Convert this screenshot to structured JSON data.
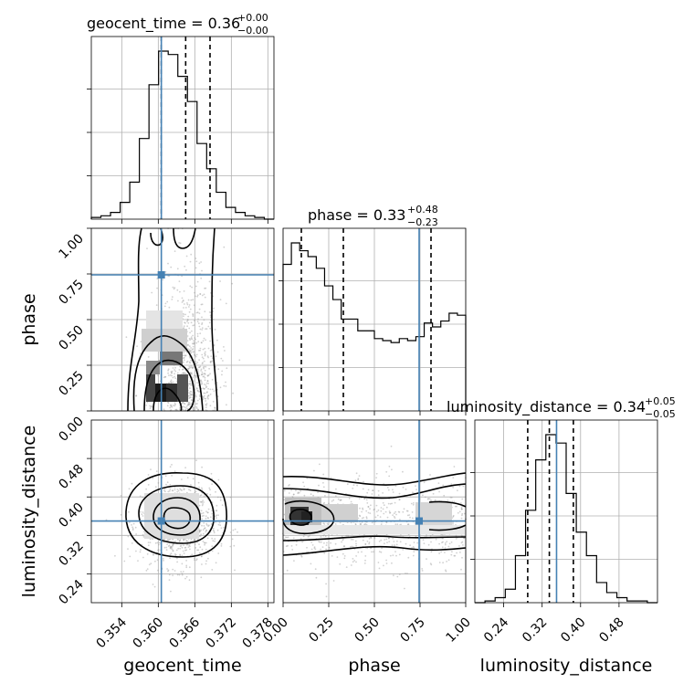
{
  "chart_data": {
    "type": "corner",
    "parameters": [
      {
        "name": "geocent_time",
        "axis_label": "geocent_time",
        "title": {
          "base": "geocent_time = 0.36",
          "plus": "+0.00",
          "minus": "−0.00"
        },
        "range": [
          0.349,
          0.379
        ],
        "ticks": [
          0.354,
          0.36,
          0.366,
          0.372,
          0.378
        ],
        "tick_labels": [
          "0.354",
          "0.360",
          "0.366",
          "0.372",
          "0.378"
        ],
        "truth": 0.3605,
        "quantiles": [
          0.3605,
          0.3645,
          0.3685
        ],
        "hist": [
          1,
          2,
          4,
          10,
          22,
          48,
          80,
          100,
          98,
          85,
          70,
          45,
          30,
          16,
          7,
          4,
          2,
          1,
          0
        ]
      },
      {
        "name": "phase",
        "axis_label": "phase",
        "title": {
          "base": "phase = 0.33",
          "plus": "+0.48",
          "minus": "−0.23"
        },
        "range": [
          0.0,
          1.0
        ],
        "ticks": [
          0.0,
          0.25,
          0.5,
          0.75,
          1.0
        ],
        "tick_labels": [
          "0.00",
          "0.25",
          "0.50",
          "0.75",
          "1.00"
        ],
        "truth": 0.745,
        "quantiles": [
          0.1,
          0.33,
          0.81
        ],
        "hist": [
          75,
          86,
          82,
          79,
          73,
          64,
          57,
          47,
          47,
          41,
          41,
          37,
          36,
          35,
          37,
          36,
          38,
          45,
          43,
          46,
          50,
          49
        ]
      },
      {
        "name": "luminosity_distance",
        "axis_label": "luminosity_distance",
        "title": {
          "base": "luminosity_distance = 0.34",
          "plus": "+0.05",
          "minus": "−0.05"
        },
        "range": [
          0.18,
          0.56
        ],
        "ticks": [
          0.24,
          0.32,
          0.4,
          0.48
        ],
        "tick_labels": [
          "0.24",
          "0.32",
          "0.40",
          "0.48"
        ],
        "truth": 0.35,
        "quantiles": [
          0.29,
          0.335,
          0.385
        ],
        "hist": [
          0,
          1,
          3,
          8,
          28,
          55,
          85,
          100,
          95,
          65,
          42,
          28,
          12,
          6,
          3,
          1,
          1,
          0
        ]
      }
    ],
    "pairs": [
      {
        "x": "geocent_time",
        "y": "phase"
      },
      {
        "x": "geocent_time",
        "y": "luminosity_distance"
      },
      {
        "x": "phase",
        "y": "luminosity_distance"
      }
    ],
    "grid": true,
    "colors": {
      "truth": "#4682b4",
      "contour": "#000000",
      "points": "#9a9a9a"
    }
  }
}
